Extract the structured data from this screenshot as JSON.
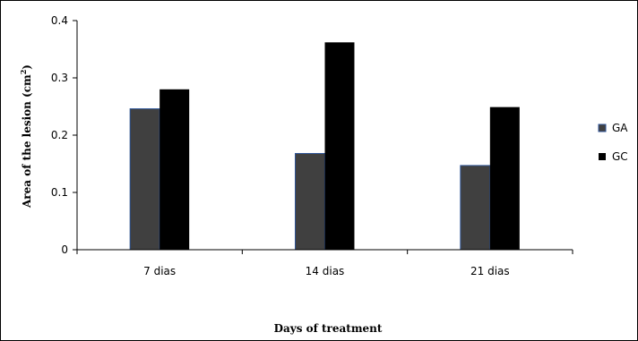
{
  "chart_data": {
    "type": "bar",
    "categories": [
      "7 dias",
      "14 dias",
      "21 dias"
    ],
    "series": [
      {
        "name": "GA",
        "values": [
          0.246,
          0.168,
          0.147
        ],
        "color": "#404040"
      },
      {
        "name": "GC",
        "values": [
          0.28,
          0.362,
          0.249
        ],
        "color": "#000000"
      }
    ],
    "xlabel": "Days of treatment",
    "ylabel_main": "Area of the lesion (cm",
    "ylabel_sup": "2",
    "ylabel_close": ")",
    "ylim": [
      0,
      0.4
    ],
    "yticks": [
      "0",
      "0.1",
      "0.2",
      "0.3",
      "0.4"
    ],
    "grid": false,
    "legend_position": "right"
  }
}
